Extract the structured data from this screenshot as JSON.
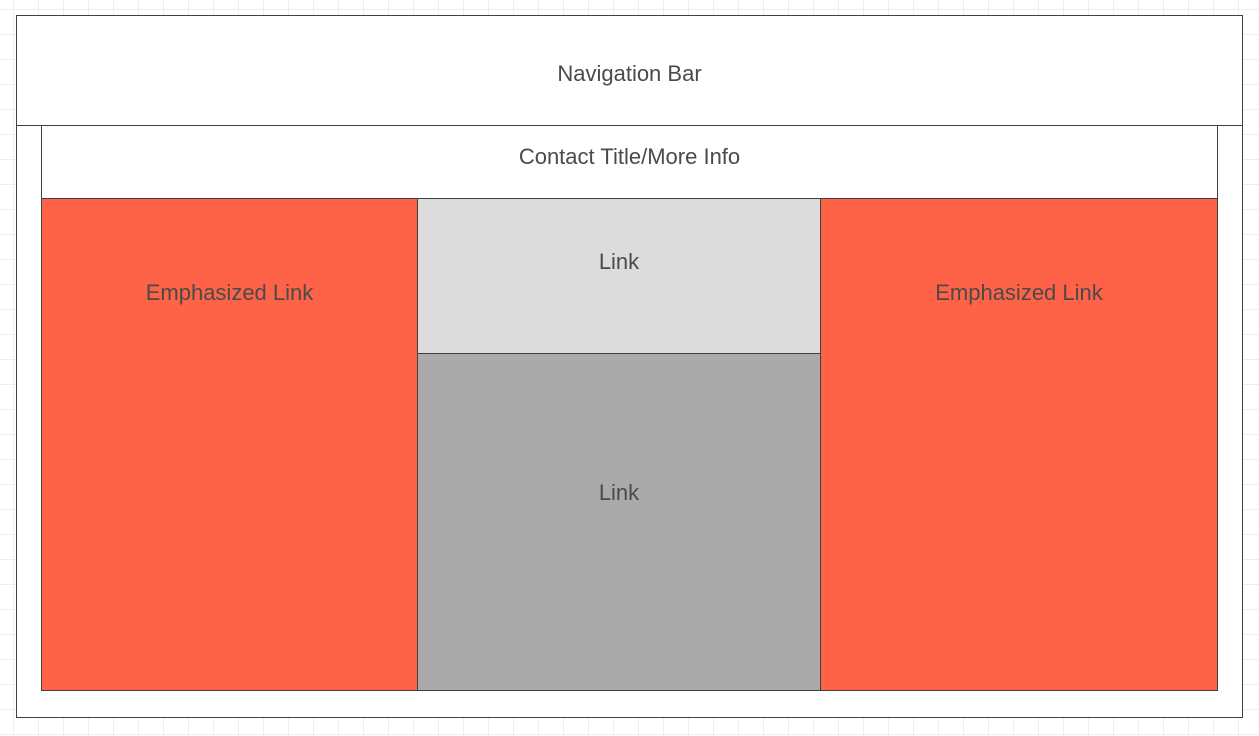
{
  "colors": {
    "emphasized": "#ff6347",
    "link_light": "#dcdcdc",
    "link_dark": "#aaaaaa",
    "frame_bg": "#ffffff",
    "text": "#4a4a4a"
  },
  "nav_bar": {
    "label": "Navigation Bar"
  },
  "contact": {
    "label": "Contact Title/More Info"
  },
  "blocks": {
    "emphasized_left": {
      "label": "Emphasized Link"
    },
    "link_top": {
      "label": "Link"
    },
    "link_bottom": {
      "label": "Link"
    },
    "emphasized_right": {
      "label": "Emphasized Link"
    }
  }
}
